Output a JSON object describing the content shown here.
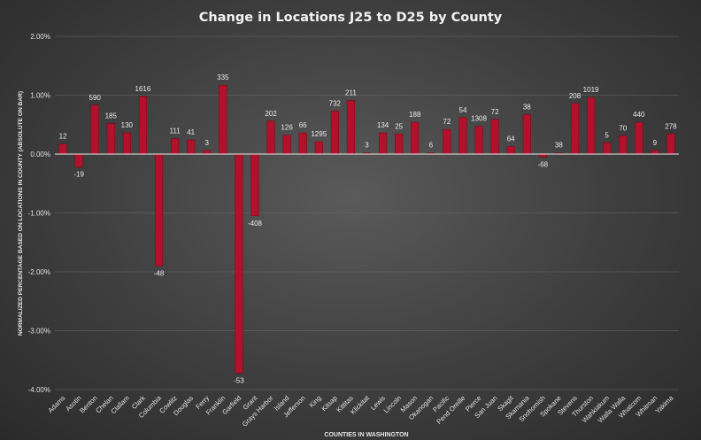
{
  "chart_data": {
    "type": "bar",
    "title": "Change in Locations J25 to D25 by County",
    "xlabel": "COUNTIES IN WASHINGTON",
    "ylabel": "NORMALIZED PERCENTAGE BASED ON LOCATIONS IN COUNTY (ABSOLUTE ON BAR)",
    "ylim": [
      -0.04,
      0.02
    ],
    "y_ticks": [
      "2.00%",
      "1.00%",
      "0.00%",
      "-1.00%",
      "-2.00%",
      "-3.00%",
      "-4.00%"
    ],
    "grid": true,
    "legend": "none",
    "bar_color": "#b5102b",
    "categories": [
      "Adams",
      "Asotin",
      "Benton",
      "Chelan",
      "Clallam",
      "Clark",
      "Columbia",
      "Cowlitz",
      "Douglas",
      "Ferry",
      "Franklin",
      "Garfield",
      "Grant",
      "Grays Harbor",
      "Island",
      "Jefferson",
      "King",
      "Kitsap",
      "Kittitas",
      "Klickitat",
      "Lewis",
      "Lincoln",
      "Mason",
      "Okanogan",
      "Pacific",
      "Pend Oreille",
      "Pierce",
      "San Juan",
      "Skagit",
      "Skamania",
      "Snohomish",
      "Spokane",
      "Stevens",
      "Thurston",
      "Wahkiakum",
      "Walla Walla",
      "Whatcom",
      "Whitman",
      "Yakima"
    ],
    "values": [
      0.0017,
      -0.0022,
      0.0083,
      0.0052,
      0.0036,
      0.0098,
      -0.019,
      0.0026,
      0.0024,
      0.0006,
      0.0117,
      -0.0372,
      -0.0105,
      0.0056,
      0.0032,
      0.0036,
      0.0021,
      0.0073,
      0.0091,
      0.0002,
      0.0036,
      0.0034,
      0.0054,
      0.0002,
      0.0042,
      0.0062,
      0.0047,
      0.0059,
      0.0013,
      0.0067,
      -0.0005,
      0.0002,
      0.0086,
      0.0096,
      0.0019,
      0.0031,
      0.0054,
      0.0006,
      0.0034
    ],
    "data_labels": [
      "12",
      "-19",
      "590",
      "185",
      "130",
      "1616",
      "-48",
      "111",
      "41",
      "3",
      "335",
      "-53",
      "-408",
      "202",
      "126",
      "66",
      "1295",
      "732",
      "211",
      "3",
      "134",
      "25",
      "188",
      "6",
      "72",
      "54",
      "1308",
      "72",
      "64",
      "38",
      "-68",
      "38",
      "208",
      "1019",
      "5",
      "70",
      "440",
      "9",
      "278"
    ]
  }
}
